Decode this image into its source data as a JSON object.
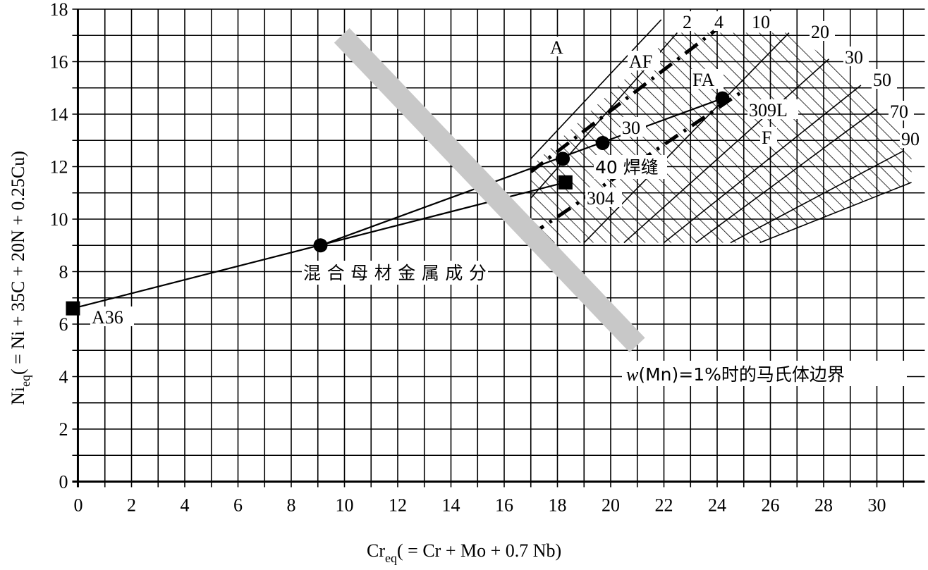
{
  "chart_data": {
    "type": "scatter",
    "title": "",
    "xlabel": "Cr_eq( = Cr + Mo + 0.7 Nb)",
    "xlabel_main": "Cr",
    "xlabel_sub": "eq",
    "xlabel_rest": "( = Cr + Mo + 0.7 Nb)",
    "ylabel_main": "Ni",
    "ylabel_sub": "eq",
    "ylabel_rest": "( = Ni + 35C + 20N + 0.25Cu)",
    "xlim": [
      -0.2,
      31.8
    ],
    "ylim": [
      0,
      18
    ],
    "xticks": [
      "0",
      "2",
      "4",
      "6",
      "8",
      "10",
      "12",
      "14",
      "16",
      "18",
      "20",
      "22",
      "24",
      "26",
      "28",
      "30"
    ],
    "yticks": [
      "0",
      "2",
      "4",
      "6",
      "8",
      "10",
      "12",
      "14",
      "16",
      "18"
    ],
    "grid": true,
    "points": [
      {
        "name": "A36",
        "label": "A36",
        "x": -0.2,
        "y": 6.6,
        "marker": "square"
      },
      {
        "name": "mixed-base-metal",
        "label": "混合母材金属成分",
        "x": 9.1,
        "y": 9.0,
        "marker": "circle"
      },
      {
        "name": "304",
        "label": "304",
        "x": 18.3,
        "y": 11.4,
        "marker": "square"
      },
      {
        "name": "309L",
        "label": "309L",
        "x": 24.2,
        "y": 14.6,
        "marker": "circle"
      },
      {
        "name": "weld-40",
        "label": "40 焊缝",
        "x": 18.2,
        "y": 12.3,
        "marker": "circle"
      },
      {
        "name": "weld-30",
        "label": "30",
        "x": 19.7,
        "y": 12.9,
        "marker": "circle"
      }
    ],
    "tie_lines": [
      {
        "from": "A36",
        "to": "304"
      },
      {
        "from": "mixed-base-metal",
        "to": "309L"
      }
    ],
    "regions": [
      "A",
      "AF",
      "FA",
      "F"
    ],
    "ferrite_number_lines": [
      {
        "fn": "0",
        "label": "",
        "from": [
          17,
          12.3
        ],
        "to": [
          21.9,
          17.6
        ],
        "style": "solid"
      },
      {
        "fn": "2",
        "label": "2",
        "from": [
          17,
          10.8
        ],
        "to": [
          22.5,
          17.1
        ],
        "style": "solid"
      },
      {
        "fn": "4",
        "label": "4",
        "from": [
          17,
          11.8
        ],
        "to": [
          24.2,
          17.4
        ],
        "style": "dashdot"
      },
      {
        "fn": "10",
        "label": "10",
        "from": [
          17,
          9.4
        ],
        "to": [
          25.0,
          14.9
        ],
        "style": "dashdot"
      },
      {
        "fn": "20",
        "label": "20",
        "from": [
          19,
          9.1
        ],
        "to": [
          26.7,
          17.1
        ],
        "style": "solid"
      },
      {
        "fn": "30",
        "label": "30",
        "from": [
          20.5,
          9.1
        ],
        "to": [
          28.2,
          16.1
        ],
        "style": "solid"
      },
      {
        "fn": "50",
        "label": "50",
        "from": [
          22,
          9.1
        ],
        "to": [
          29.4,
          15.1
        ],
        "style": "solid"
      },
      {
        "fn": "70",
        "label": "70",
        "from": [
          23.2,
          9.1
        ],
        "to": [
          30.0,
          14.2
        ],
        "style": "solid"
      },
      {
        "fn": "90",
        "label": "90",
        "from": [
          24.5,
          9.1
        ],
        "to": [
          31.0,
          12.6
        ],
        "style": "solid"
      }
    ],
    "martensite_boundary": {
      "label": "w(Mn)=1%时的马氏体边界",
      "label_italic": "w",
      "label_rest": "(Mn)=1%时的马氏体边界",
      "from": [
        9.9,
        17.0
      ],
      "to": [
        21.0,
        5.2
      ],
      "color": "#c8c8c8"
    }
  }
}
